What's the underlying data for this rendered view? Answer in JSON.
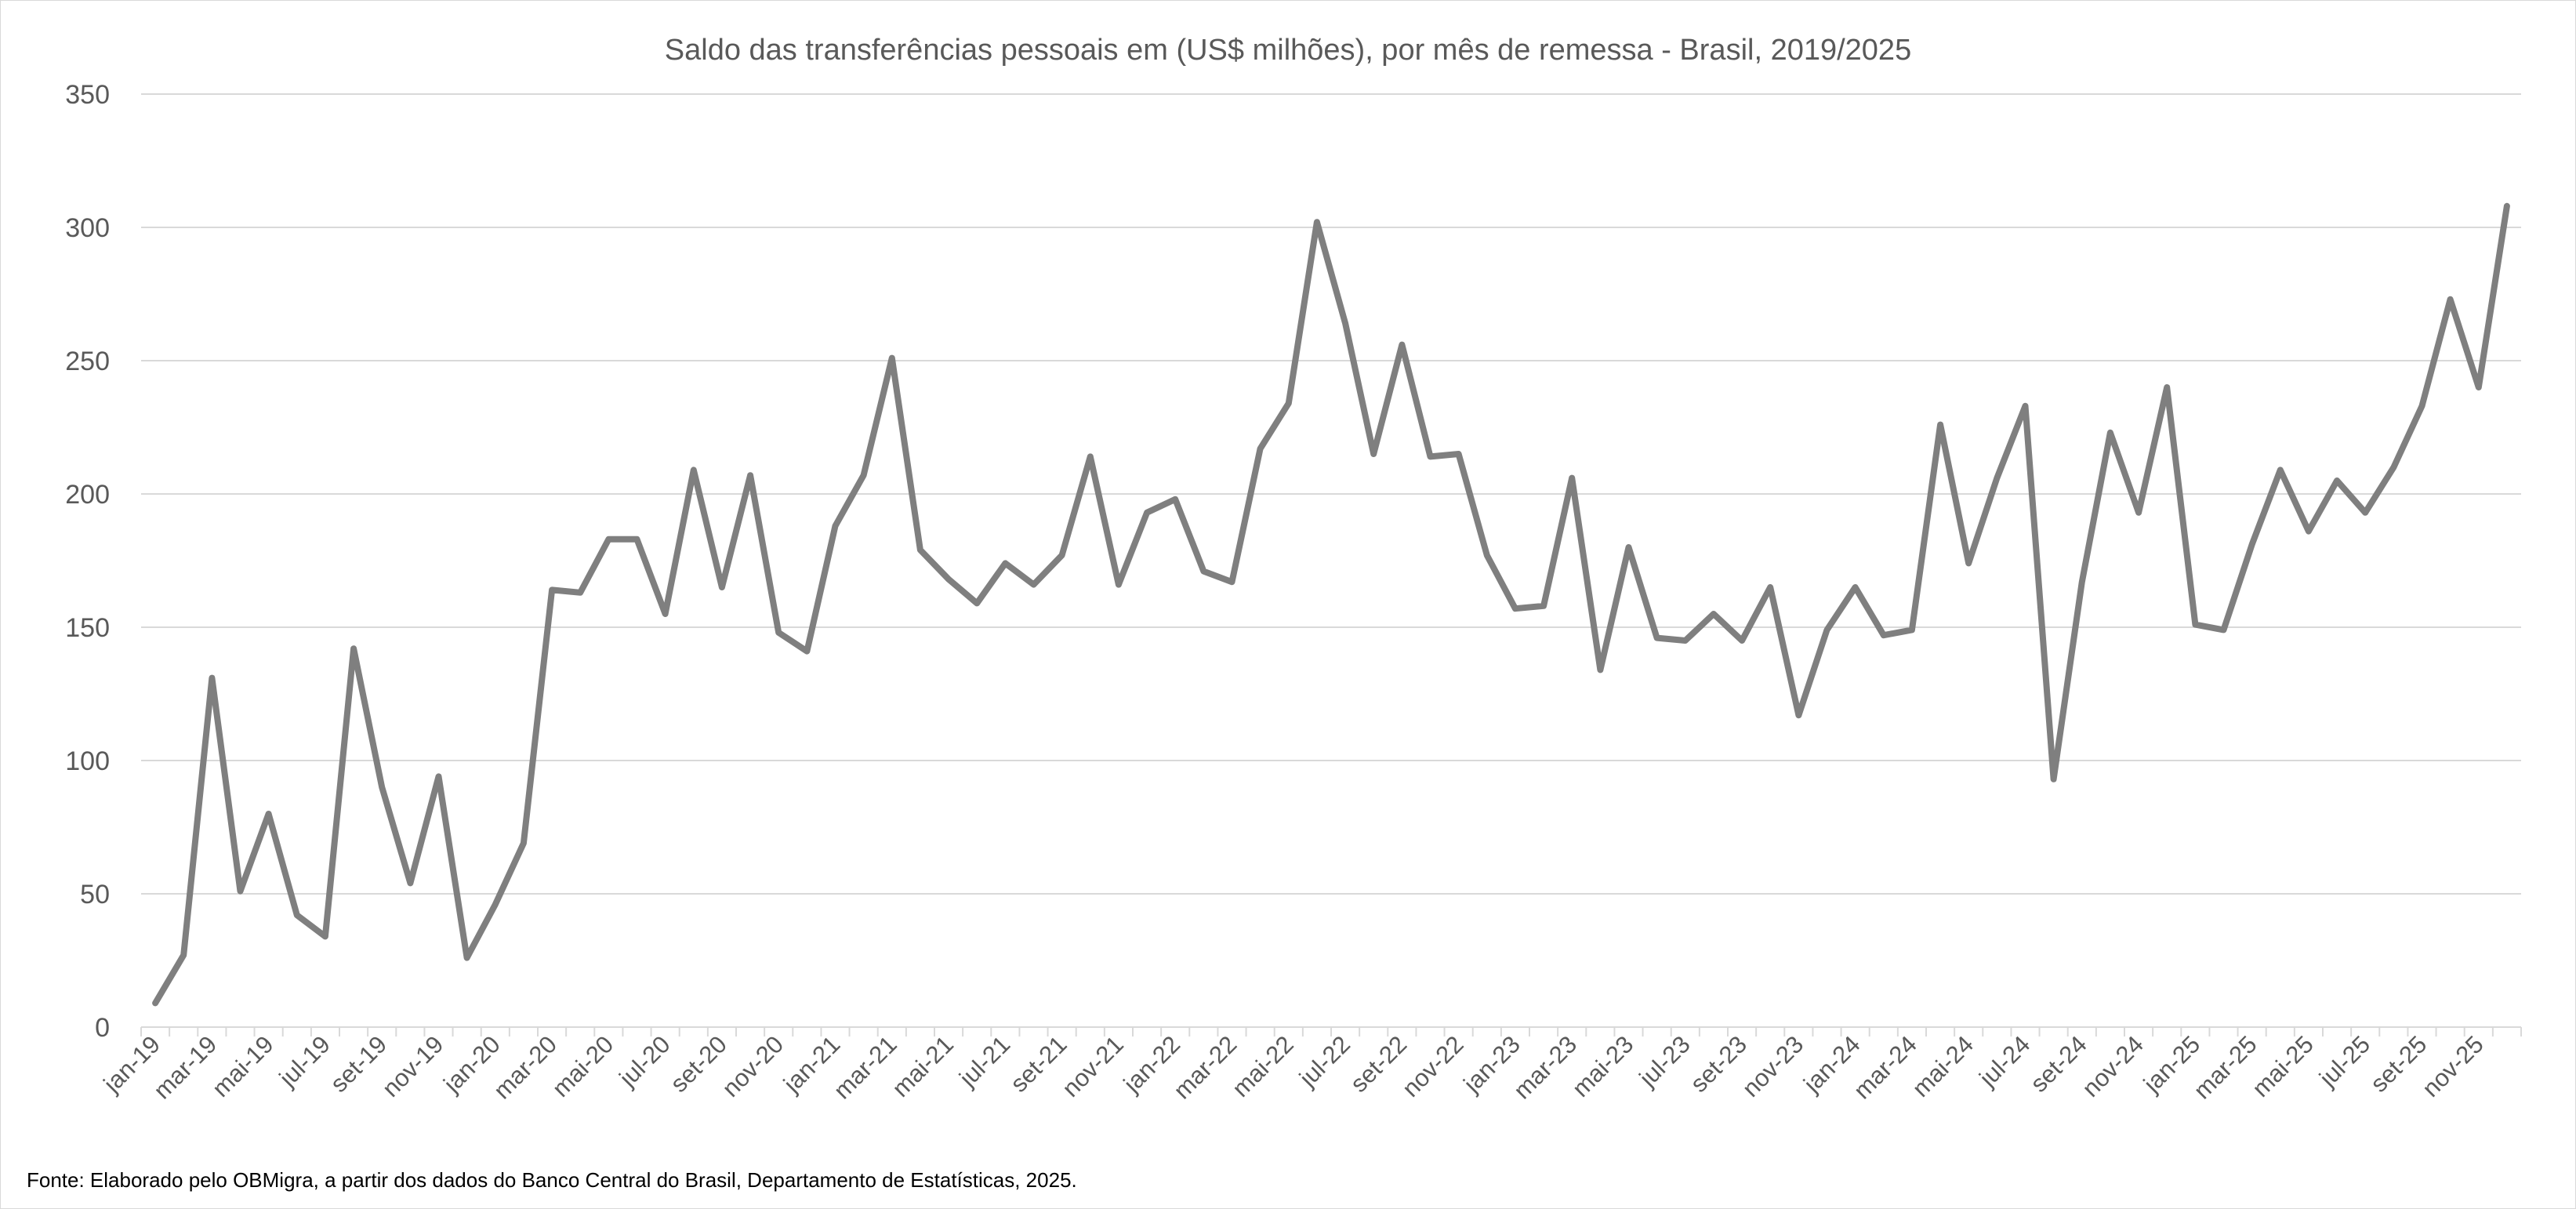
{
  "chart_data": {
    "type": "line",
    "title": "Saldo das transferências pessoais em (US$ milhões), por mês de remessa - Brasil, 2019/2025",
    "xlabel": "",
    "ylabel": "",
    "ylim": [
      0,
      350
    ],
    "yticks": [
      0,
      50,
      100,
      150,
      200,
      250,
      300,
      350
    ],
    "grid": true,
    "legend": "none",
    "categories": [
      "jan-19",
      "fev-19",
      "mar-19",
      "abr-19",
      "mai-19",
      "jun-19",
      "jul-19",
      "ago-19",
      "set-19",
      "out-19",
      "nov-19",
      "dez-19",
      "jan-20",
      "fev-20",
      "mar-20",
      "abr-20",
      "mai-20",
      "jun-20",
      "jul-20",
      "ago-20",
      "set-20",
      "out-20",
      "nov-20",
      "dez-20",
      "jan-21",
      "fev-21",
      "mar-21",
      "abr-21",
      "mai-21",
      "jun-21",
      "jul-21",
      "ago-21",
      "set-21",
      "out-21",
      "nov-21",
      "dez-21",
      "jan-22",
      "fev-22",
      "mar-22",
      "abr-22",
      "mai-22",
      "jun-22",
      "jul-22",
      "ago-22",
      "set-22",
      "out-22",
      "nov-22",
      "dez-22",
      "jan-23",
      "fev-23",
      "mar-23",
      "abr-23",
      "mai-23",
      "jun-23",
      "jul-23",
      "ago-23",
      "set-23",
      "out-23",
      "nov-23",
      "dez-23",
      "jan-24",
      "fev-24",
      "mar-24",
      "abr-24",
      "mai-24",
      "jun-24",
      "jul-24",
      "ago-24",
      "set-24",
      "out-24",
      "nov-24",
      "dez-24",
      "jan-25",
      "fev-25",
      "mar-25",
      "abr-25",
      "mai-25",
      "jun-25",
      "jul-25",
      "ago-25",
      "set-25",
      "out-25",
      "nov-25",
      "dez-25"
    ],
    "tick_labels": [
      "jan-19",
      "mar-19",
      "mai-19",
      "jul-19",
      "set-19",
      "nov-19",
      "jan-20",
      "mar-20",
      "mai-20",
      "jul-20",
      "set-20",
      "nov-20",
      "jan-21",
      "mar-21",
      "mai-21",
      "jul-21",
      "set-21",
      "nov-21",
      "jan-22",
      "mar-22",
      "mai-22",
      "jul-22",
      "set-22",
      "nov-22",
      "jan-23",
      "mar-23",
      "mai-23",
      "jul-23",
      "set-23",
      "nov-23",
      "jan-24",
      "mar-24",
      "mai-24",
      "jul-24",
      "set-24",
      "nov-24",
      "jan-25",
      "mar-25",
      "mai-25",
      "jul-25",
      "set-25",
      "nov-25"
    ],
    "series": [
      {
        "color": "#7f7f7f",
        "values": [
          9,
          27,
          131,
          51,
          80,
          42,
          34,
          142,
          90,
          54,
          94,
          26,
          46,
          69,
          164,
          163,
          183,
          183,
          155,
          209,
          165,
          207,
          148,
          141,
          188,
          207,
          251,
          179,
          168,
          159,
          174,
          166,
          177,
          214,
          166,
          193,
          198,
          171,
          167,
          217,
          234,
          302,
          264,
          215,
          256,
          214,
          215,
          177,
          157,
          158,
          206,
          134,
          180,
          146,
          145,
          155,
          145,
          165,
          117,
          149,
          165,
          147,
          149,
          226,
          174,
          206,
          233,
          93,
          167,
          223,
          193,
          240,
          151,
          149,
          181,
          209,
          186,
          205,
          193,
          210,
          233,
          273,
          240,
          308
        ]
      }
    ]
  },
  "footer": {
    "source": "Fonte:  Elaborado pelo OBMigra, a partir dos dados do Banco Central do Brasil, Departamento de Estatísticas, 2025."
  }
}
